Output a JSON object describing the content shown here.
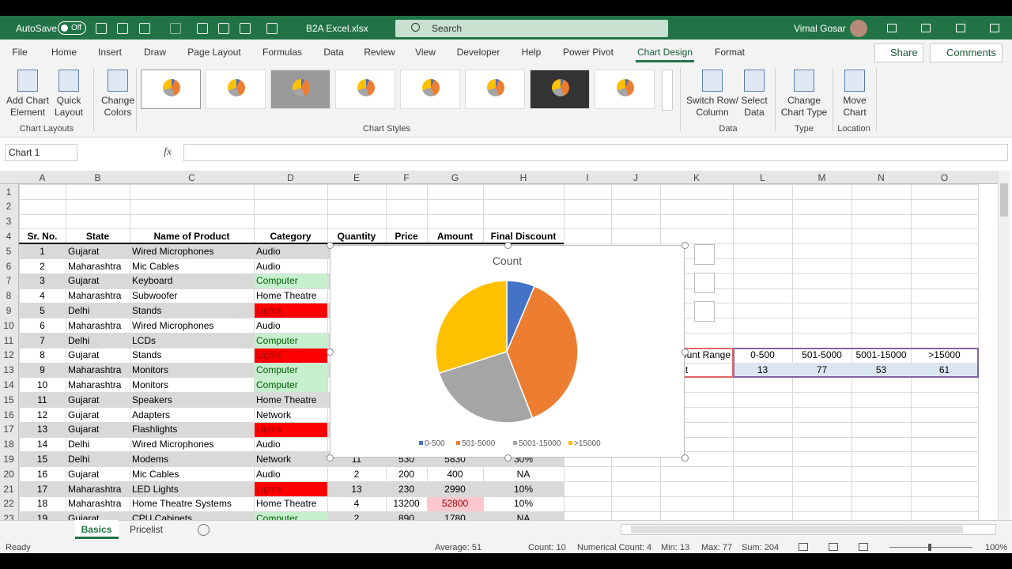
{
  "title_bar": {
    "autosave": "AutoSave",
    "autosave_state": "Off",
    "file_name": "B2A Excel.xlsx",
    "search": "Search",
    "user": "Vimal Gosar"
  },
  "tabs": [
    "File",
    "Home",
    "Insert",
    "Draw",
    "Page Layout",
    "Formulas",
    "Data",
    "Review",
    "View",
    "Developer",
    "Help",
    "Power Pivot",
    "Chart Design",
    "Format"
  ],
  "share": "Share",
  "comments": "Comments",
  "ribbon": {
    "buttons": [
      [
        "Add Chart",
        "Element"
      ],
      [
        "Quick",
        "Layout"
      ],
      [
        "Change",
        "Colors"
      ],
      [
        "Switch Row/",
        "Column"
      ],
      [
        "Select",
        "Data"
      ],
      [
        "Change",
        "Chart Type"
      ],
      [
        "Move",
        "Chart"
      ]
    ],
    "groups": [
      "Chart Layouts",
      "Chart Styles",
      "Data",
      "Type",
      "Location"
    ]
  },
  "formula_bar": {
    "name_box": "Chart 1",
    "fx": "fx"
  },
  "sheet": {
    "columns": [
      "A",
      "B",
      "C",
      "D",
      "E",
      "F",
      "G",
      "H",
      "I",
      "J",
      "K",
      "L",
      "M",
      "N",
      "O"
    ],
    "row_numbers": [
      1,
      2,
      3,
      4,
      5,
      6,
      7,
      8,
      9,
      10,
      11,
      12,
      13,
      14,
      15,
      16,
      17,
      18,
      19,
      20,
      21,
      22,
      23
    ],
    "header": [
      "Sr. No.",
      "State",
      "Name of Product",
      "Category",
      "Quantity",
      "Price",
      "Amount",
      "Final Discount"
    ],
    "rows": [
      [
        1,
        "Gujarat",
        "Wired Microphones",
        "Audio"
      ],
      [
        2,
        "Maharashtra",
        "Mic Cables",
        "Audio"
      ],
      [
        3,
        "Gujarat",
        "Keyboard",
        "Computer"
      ],
      [
        4,
        "Maharashtra",
        "Subwoofer",
        "Home Theatre"
      ],
      [
        5,
        "Delhi",
        "Stands",
        "Lights"
      ],
      [
        6,
        "Maharashtra",
        "Wired Microphones",
        "Audio"
      ],
      [
        7,
        "Delhi",
        "LCDs",
        "Computer"
      ],
      [
        8,
        "Gujarat",
        "Stands",
        "Lights"
      ],
      [
        9,
        "Maharashtra",
        "Monitors",
        "Computer"
      ],
      [
        10,
        "Maharashtra",
        "Monitors",
        "Computer"
      ],
      [
        11,
        "Gujarat",
        "Speakers",
        "Home Theatre"
      ],
      [
        12,
        "Gujarat",
        "Adapters",
        "Network"
      ],
      [
        13,
        "Gujarat",
        "Flashlights",
        "Lights"
      ],
      [
        14,
        "Delhi",
        "Wired Microphones",
        "Audio"
      ],
      [
        15,
        "Delhi",
        "Modems",
        "Network",
        11,
        530,
        5830,
        "30%"
      ],
      [
        16,
        "Gujarat",
        "Mic Cables",
        "Audio",
        2,
        200,
        400,
        "NA"
      ],
      [
        17,
        "Maharashtra",
        "LED Lights",
        "Lights",
        13,
        230,
        2990,
        "10%"
      ],
      [
        18,
        "Maharashtra",
        "Home Theatre Systems",
        "Home Theatre",
        4,
        13200,
        52800,
        "10%"
      ],
      [
        19,
        "Gujarat",
        "CPU Cabinets",
        "Computer",
        2,
        890,
        1780,
        "NA"
      ]
    ],
    "side_table": {
      "header": [
        "Count Range",
        "0-500",
        "501-5000",
        "5001-15000",
        ">15000"
      ],
      "counts": [
        "Count",
        13,
        77,
        53,
        61
      ]
    }
  },
  "chart_data": {
    "type": "pie",
    "title": "Count",
    "categories": [
      "0-500",
      "501-5000",
      "5001-15000",
      ">15000"
    ],
    "values": [
      13,
      77,
      53,
      61
    ],
    "colors": [
      "#4472c4",
      "#ed7d31",
      "#a5a5a5",
      "#ffc000"
    ],
    "legend": "bottom"
  },
  "sheet_tabs": [
    "Basics",
    "Pricelist"
  ],
  "status_bar": {
    "ready": "Ready",
    "average": "Average: 51",
    "count": "Count: 10",
    "numerical_count": "Numerical Count: 4",
    "min": "Min: 13",
    "max": "Max: 77",
    "sum": "Sum: 204",
    "zoom": "100%"
  }
}
